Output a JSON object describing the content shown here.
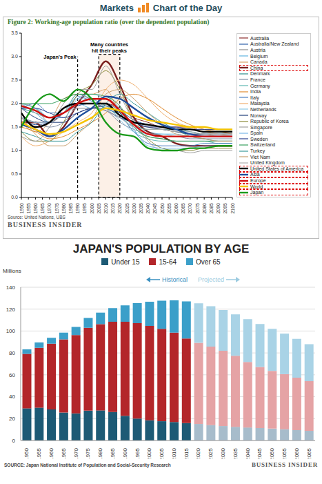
{
  "chart_data": [
    {
      "type": "line",
      "header": [
        "Markets",
        "Chart of the Day"
      ],
      "title": "Figure 2: Working-age population ratio (over the dependent population)",
      "source": "Source: United Nations, UBS",
      "publisher": "BUSINESS INSIDER",
      "annotations": [
        {
          "text": "Japan's Peak",
          "x": 1990,
          "y": [
            0,
            3.0
          ]
        },
        {
          "text": "Many countries hit their peaks",
          "x": [
            2005,
            2020
          ],
          "y": [
            0,
            3.05
          ]
        }
      ],
      "x": [
        1950,
        1960,
        1970,
        1980,
        1990,
        2000,
        2010,
        2020,
        2030,
        2040,
        2050,
        2060,
        2070,
        2080,
        2090,
        2100
      ],
      "series": [
        {
          "name": "Australia",
          "color": "#8c2d2d",
          "values": [
            1.7,
            1.6,
            1.6,
            1.8,
            2.0,
            2.0,
            2.0,
            1.9,
            1.7,
            1.6,
            1.5,
            1.5,
            1.5,
            1.4,
            1.4,
            1.4
          ]
        },
        {
          "name": "Australia/New Zealand",
          "color": "#2e5fa8",
          "values": [
            1.7,
            1.55,
            1.6,
            1.8,
            1.95,
            2.0,
            2.0,
            1.85,
            1.65,
            1.55,
            1.5,
            1.45,
            1.45,
            1.4,
            1.4,
            1.4
          ]
        },
        {
          "name": "Austria",
          "color": "#8e8e8e",
          "values": [
            2.0,
            1.9,
            1.6,
            1.8,
            2.2,
            2.1,
            2.1,
            1.9,
            1.5,
            1.3,
            1.25,
            1.2,
            1.2,
            1.2,
            1.2,
            1.2
          ]
        },
        {
          "name": "Belgium",
          "color": "#5fb4e0",
          "values": [
            2.0,
            1.8,
            1.6,
            1.9,
            2.0,
            1.9,
            1.9,
            1.7,
            1.5,
            1.4,
            1.35,
            1.35,
            1.3,
            1.3,
            1.3,
            1.3
          ]
        },
        {
          "name": "Canada",
          "color": "#d9a066",
          "values": [
            1.6,
            1.4,
            1.6,
            2.1,
            2.2,
            2.2,
            2.3,
            1.8,
            1.55,
            1.5,
            1.45,
            1.4,
            1.35,
            1.35,
            1.3,
            1.3
          ]
        },
        {
          "name": "China",
          "color": "#7a1f1f",
          "line_style": "thick",
          "values": [
            1.6,
            1.6,
            1.3,
            1.5,
            2.0,
            2.4,
            2.9,
            2.4,
            1.7,
            1.4,
            1.3,
            1.15,
            1.1,
            1.1,
            1.1,
            1.1
          ]
        },
        {
          "name": "Denmark",
          "color": "#2a8c8c",
          "values": [
            1.9,
            1.8,
            1.7,
            1.9,
            2.0,
            2.0,
            1.9,
            1.75,
            1.55,
            1.45,
            1.45,
            1.45,
            1.4,
            1.35,
            1.35,
            1.35
          ]
        },
        {
          "name": "France",
          "color": "#7f8fa6",
          "values": [
            1.7,
            1.6,
            1.5,
            1.6,
            1.9,
            1.9,
            1.85,
            1.6,
            1.45,
            1.35,
            1.3,
            1.3,
            1.25,
            1.25,
            1.25,
            1.25
          ]
        },
        {
          "name": "Germany",
          "color": "#5fb8b0",
          "values": [
            2.0,
            1.9,
            1.7,
            1.8,
            2.2,
            2.1,
            1.95,
            1.8,
            1.4,
            1.25,
            1.2,
            1.2,
            1.2,
            1.2,
            1.15,
            1.15
          ]
        },
        {
          "name": "India",
          "color": "#e08a2e",
          "values": [
            1.5,
            1.4,
            1.25,
            1.3,
            1.45,
            1.6,
            1.8,
            2.1,
            2.2,
            2.1,
            1.9,
            1.7,
            1.55,
            1.45,
            1.4,
            1.35
          ]
        },
        {
          "name": "Italy",
          "color": "#4a7fc1",
          "values": [
            1.9,
            2.0,
            1.8,
            1.8,
            2.15,
            2.05,
            1.9,
            1.75,
            1.4,
            1.15,
            1.1,
            1.1,
            1.1,
            1.15,
            1.15,
            1.15
          ]
        },
        {
          "name": "Malaysia",
          "color": "#f0b070",
          "values": [
            1.3,
            1.1,
            1.2,
            1.4,
            1.6,
            1.8,
            2.3,
            2.5,
            2.4,
            2.1,
            1.8,
            1.6,
            1.5,
            1.4,
            1.35,
            1.3
          ]
        },
        {
          "name": "Netherlands",
          "color": "#8ecae6",
          "values": [
            1.7,
            1.6,
            1.6,
            1.9,
            2.1,
            2.1,
            1.9,
            1.65,
            1.4,
            1.35,
            1.35,
            1.3,
            1.3,
            1.3,
            1.3,
            1.3
          ]
        },
        {
          "name": "Norway",
          "color": "#1f3f7a",
          "values": [
            1.9,
            1.7,
            1.6,
            1.6,
            1.8,
            1.9,
            1.95,
            1.8,
            1.6,
            1.5,
            1.45,
            1.4,
            1.35,
            1.35,
            1.35,
            1.35
          ]
        },
        {
          "name": "Republic of Korea",
          "color": "#8a8a3a",
          "values": [
            1.4,
            1.2,
            1.2,
            1.6,
            2.2,
            2.4,
            2.7,
            2.3,
            1.6,
            1.25,
            1.05,
            1.0,
            1.0,
            1.05,
            1.05,
            1.05
          ]
        },
        {
          "name": "Singapore",
          "color": "#a0a0a0",
          "values": [
            1.3,
            1.2,
            1.5,
            2.0,
            2.3,
            2.3,
            2.8,
            2.2,
            1.6,
            1.2,
            1.0,
            1.0,
            0.95,
            1.0,
            1.0,
            1.0
          ]
        },
        {
          "name": "Spain",
          "color": "#7ab8e8",
          "values": [
            1.9,
            1.9,
            1.7,
            1.7,
            2.1,
            2.2,
            2.1,
            1.9,
            1.45,
            1.1,
            1.05,
            1.05,
            1.05,
            1.1,
            1.1,
            1.1
          ]
        },
        {
          "name": "Sweden",
          "color": "#2b3f8c",
          "values": [
            1.9,
            1.9,
            1.8,
            1.7,
            1.8,
            1.9,
            1.85,
            1.7,
            1.6,
            1.5,
            1.5,
            1.5,
            1.45,
            1.45,
            1.45,
            1.45
          ]
        },
        {
          "name": "Switzerland",
          "color": "#3aa060",
          "values": [
            2.0,
            2.0,
            2.0,
            2.1,
            2.2,
            2.2,
            2.15,
            1.95,
            1.5,
            1.3,
            1.25,
            1.2,
            1.2,
            1.2,
            1.2,
            1.2
          ]
        },
        {
          "name": "Turkey",
          "color": "#3a9a9a",
          "values": [
            1.4,
            1.3,
            1.2,
            1.2,
            1.4,
            1.6,
            2.0,
            2.2,
            2.0,
            1.8,
            1.6,
            1.45,
            1.3,
            1.25,
            1.2,
            1.2
          ]
        },
        {
          "name": "Viet Nam",
          "color": "#c8a070",
          "values": [
            1.7,
            1.35,
            1.1,
            1.1,
            1.35,
            1.65,
            2.2,
            2.3,
            2.1,
            1.8,
            1.55,
            1.35,
            1.3,
            1.25,
            1.2,
            1.2
          ]
        },
        {
          "name": "United Kingdom",
          "color": "#b0b0b0",
          "values": [
            2.0,
            1.8,
            1.7,
            1.8,
            1.9,
            1.9,
            1.85,
            1.7,
            1.5,
            1.45,
            1.45,
            1.4,
            1.4,
            1.35,
            1.35,
            1.35
          ]
        },
        {
          "name": "United States of America",
          "color": "#000000",
          "line_style": "thick",
          "values": [
            1.8,
            1.5,
            1.6,
            1.9,
            2.0,
            2.0,
            2.0,
            1.75,
            1.6,
            1.55,
            1.5,
            1.45,
            1.45,
            1.4,
            1.4,
            1.4
          ]
        },
        {
          "name": "Asia",
          "color": "#1f4e9c",
          "line_style": "thick",
          "values": [
            1.55,
            1.45,
            1.3,
            1.45,
            1.7,
            1.9,
            2.15,
            2.1,
            1.9,
            1.7,
            1.55,
            1.45,
            1.35,
            1.3,
            1.3,
            1.3
          ]
        },
        {
          "name": "Europe",
          "color": "#d01010",
          "line_style": "thick",
          "values": [
            1.95,
            1.85,
            1.7,
            1.8,
            2.0,
            2.1,
            2.1,
            1.85,
            1.55,
            1.35,
            1.3,
            1.3,
            1.3,
            1.3,
            1.3,
            1.3
          ]
        },
        {
          "name": "World",
          "color": "#f5c400",
          "line_style": "thick",
          "values": [
            1.6,
            1.45,
            1.35,
            1.4,
            1.55,
            1.7,
            1.9,
            1.85,
            1.75,
            1.65,
            1.6,
            1.55,
            1.5,
            1.5,
            1.45,
            1.45
          ]
        },
        {
          "name": "Japan",
          "color": "#1a9a1a",
          "line_style": "thick",
          "values": [
            1.5,
            2.0,
            2.2,
            2.05,
            2.3,
            2.1,
            1.6,
            1.35,
            1.3,
            1.05,
            1.0,
            1.0,
            1.05,
            1.05,
            1.1,
            1.1
          ]
        }
      ],
      "xlim": [
        1950,
        2100
      ],
      "xticks": [
        1950,
        1955,
        1960,
        1965,
        1970,
        1975,
        1980,
        1985,
        1990,
        1995,
        2000,
        2005,
        2010,
        2015,
        2020,
        2025,
        2030,
        2035,
        2040,
        2045,
        2050,
        2055,
        2060,
        2065,
        2070,
        2075,
        2080,
        2085,
        2090,
        2095,
        2100
      ],
      "ylim": [
        0,
        3.5
      ],
      "yticks": [
        {
          "value": 0,
          "label": "0.0"
        },
        {
          "value": 0.5,
          "label": "0.5"
        },
        {
          "value": 1,
          "label": "1.0"
        },
        {
          "value": 1.5,
          "label": "1.5"
        },
        {
          "value": 2,
          "label": "2.0"
        },
        {
          "value": 2.5,
          "label": "2.5"
        },
        {
          "value": 3,
          "label": "3.0"
        },
        {
          "value": 3.5,
          "label": "3.5"
        }
      ],
      "legend": "right",
      "grid": false
    },
    {
      "type": "bar",
      "stacked": true,
      "title": "JAPAN'S POPULATION BY AGE",
      "y_label": "Millions",
      "annotations": [
        {
          "text": "Historical",
          "color": "#3a90c0"
        },
        {
          "text": "Projected",
          "color": "#9ccbe0"
        }
      ],
      "categories": [
        "1950",
        "1955",
        "1960",
        "1965",
        "1970",
        "1975",
        "1980",
        "1985",
        "1990",
        "1995",
        "2000",
        "2005",
        "2010",
        "2015",
        "2020",
        "2025",
        "2030",
        "2035",
        "2040",
        "2045",
        "2050",
        "2055",
        "2060",
        "2065"
      ],
      "series": [
        {
          "name": "Under 15",
          "color": "#1d5a75",
          "colors": [
            "#1d5a75",
            "#1d5a75",
            "#1d5a75",
            "#1d5a75",
            "#1d5a75",
            "#1d5a75",
            "#1d5a75",
            "#1d5a75",
            "#1d5a75",
            "#1d5a75",
            "#1d5a75",
            "#1d5a75",
            "#1d5a75",
            "#1d5a75",
            "#a7bccb",
            "#a7bccb",
            "#a7bccb",
            "#a7bccb",
            "#a7bccb",
            "#a7bccb",
            "#a7bccb",
            "#a7bccb",
            "#a7bccb",
            "#a7bccb"
          ],
          "values": [
            29.4,
            30.0,
            28.4,
            25.5,
            24.8,
            27.2,
            27.5,
            26.0,
            22.5,
            20.0,
            18.5,
            17.6,
            16.8,
            15.9,
            15.1,
            14.1,
            13.2,
            12.5,
            11.9,
            11.4,
            10.8,
            10.3,
            9.5,
            8.9
          ]
        },
        {
          "name": "15-64",
          "color": "#b3262a",
          "colors": [
            "#b3262a",
            "#b3262a",
            "#b3262a",
            "#b3262a",
            "#b3262a",
            "#b3262a",
            "#b3262a",
            "#b3262a",
            "#b3262a",
            "#b3262a",
            "#b3262a",
            "#b3262a",
            "#b3262a",
            "#b3262a",
            "#e5a3a5",
            "#e5a3a5",
            "#e5a3a5",
            "#e5a3a5",
            "#e5a3a5",
            "#e5a3a5",
            "#e5a3a5",
            "#e5a3a5",
            "#e5a3a5",
            "#e5a3a5"
          ],
          "values": [
            49.7,
            54.7,
            60.0,
            66.9,
            71.6,
            75.8,
            78.8,
            82.5,
            86.0,
            87.2,
            86.2,
            84.4,
            81.7,
            77.3,
            74.1,
            71.7,
            68.8,
            64.9,
            59.8,
            55.8,
            52.8,
            50.3,
            47.9,
            45.3
          ]
        },
        {
          "name": "Over 65",
          "color": "#3b9fc9",
          "colors": [
            "#3b9fc9",
            "#3b9fc9",
            "#3b9fc9",
            "#3b9fc9",
            "#3b9fc9",
            "#3b9fc9",
            "#3b9fc9",
            "#3b9fc9",
            "#3b9fc9",
            "#3b9fc9",
            "#3b9fc9",
            "#3b9fc9",
            "#3b9fc9",
            "#3b9fc9",
            "#a9d3e6",
            "#a9d3e6",
            "#a9d3e6",
            "#a9d3e6",
            "#a9d3e6",
            "#a9d3e6",
            "#a9d3e6",
            "#a9d3e6",
            "#a9d3e6",
            "#a9d3e6"
          ],
          "values": [
            4.1,
            4.8,
            5.4,
            6.2,
            7.3,
            8.9,
            10.6,
            12.5,
            14.9,
            18.3,
            22.0,
            25.7,
            29.5,
            33.9,
            36.2,
            36.8,
            37.2,
            37.8,
            39.2,
            39.2,
            38.4,
            37.0,
            35.4,
            33.8
          ]
        }
      ],
      "ylim": [
        0,
        140
      ],
      "yticks": [
        0,
        20,
        40,
        60,
        80,
        100,
        120,
        140
      ],
      "grid": true,
      "legend": "top",
      "source": "SOURCE: Japan National Institute of Population and Social-Security Research",
      "publisher": "BUSINESS INSIDER"
    }
  ]
}
